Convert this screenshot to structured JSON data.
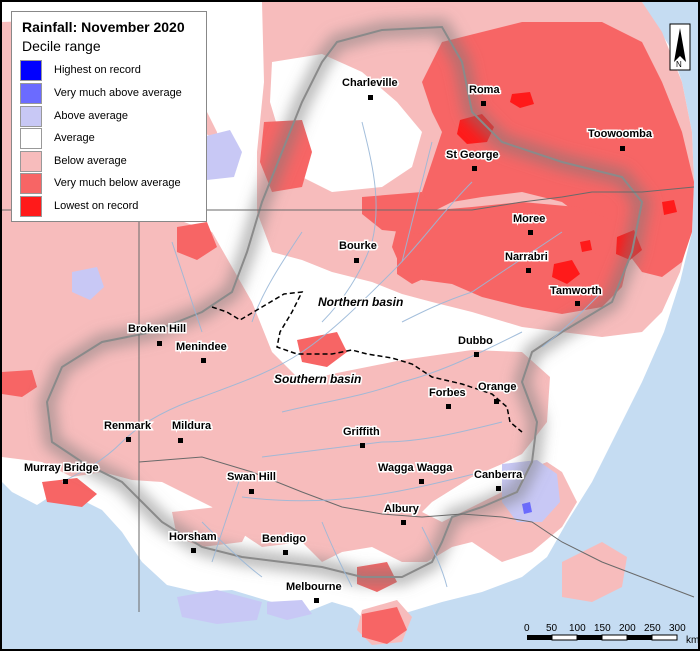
{
  "legend": {
    "title": "Rainfall: November 2020",
    "subtitle": "Decile range",
    "items": [
      {
        "label": "Highest on record",
        "color": "#0000ff"
      },
      {
        "label": "Very much above average",
        "color": "#6b6bff"
      },
      {
        "label": "Above average",
        "color": "#c8c8f5"
      },
      {
        "label": "Average",
        "color": "#ffffff"
      },
      {
        "label": "Below average",
        "color": "#f7bcbc"
      },
      {
        "label": "Very much below average",
        "color": "#f76565"
      },
      {
        "label": "Lowest on record",
        "color": "#ff1a1a"
      }
    ]
  },
  "places": [
    {
      "name": "Charleville"
    },
    {
      "name": "Roma"
    },
    {
      "name": "Toowoomba"
    },
    {
      "name": "St George"
    },
    {
      "name": "Moree"
    },
    {
      "name": "Narrabri"
    },
    {
      "name": "Tamworth"
    },
    {
      "name": "Bourke"
    },
    {
      "name": "Broken Hill"
    },
    {
      "name": "Menindee"
    },
    {
      "name": "Dubbo"
    },
    {
      "name": "Forbes"
    },
    {
      "name": "Orange"
    },
    {
      "name": "Renmark"
    },
    {
      "name": "Mildura"
    },
    {
      "name": "Griffith"
    },
    {
      "name": "Murray Bridge"
    },
    {
      "name": "Swan Hill"
    },
    {
      "name": "Wagga Wagga"
    },
    {
      "name": "Canberra"
    },
    {
      "name": "Albury"
    },
    {
      "name": "Horsham"
    },
    {
      "name": "Bendigo"
    },
    {
      "name": "Melbourne"
    }
  ],
  "basins": {
    "northern": "Northern basin",
    "southern": "Southern basin"
  },
  "scale_bar": {
    "ticks": [
      "0",
      "50",
      "100",
      "150",
      "200",
      "250",
      "300"
    ],
    "unit": "km"
  },
  "north_arrow": {
    "label": "N"
  },
  "colors": {
    "ocean": "#c5dcf2",
    "land": "#ffffff",
    "river": "#9ab8d8",
    "boundary": "#6a6a6a"
  }
}
